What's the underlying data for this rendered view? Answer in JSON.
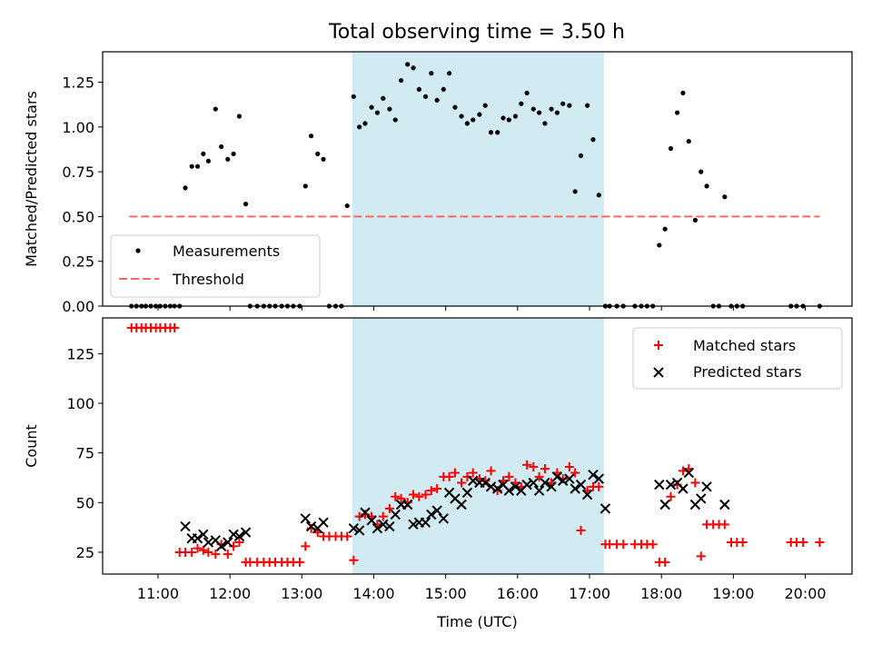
{
  "title": "Total observing time = 3.50 h",
  "colors": {
    "shade": "#add8e6",
    "measurement": "#000000",
    "threshold": "#ff6666",
    "matched": "#ff0000",
    "predicted": "#000000"
  },
  "chart_data": [
    {
      "type": "scatter",
      "panel": "top",
      "title": "Total observing time = 3.50 h",
      "xlabel": "",
      "ylabel": "Matched/Predicted stars",
      "xlim": [
        10.23,
        20.65
      ],
      "ylim": [
        0,
        1.42
      ],
      "yticks": [
        "0.00",
        "0.25",
        "0.50",
        "0.75",
        "1.00",
        "1.25"
      ],
      "ytick_values": [
        0,
        0.25,
        0.5,
        0.75,
        1.0,
        1.25
      ],
      "shaded_region": [
        13.7,
        17.2
      ],
      "legend": {
        "position": "lower-left",
        "entries": [
          "Measurements",
          "Threshold"
        ]
      },
      "threshold": {
        "name": "Threshold",
        "x": [
          10.6,
          20.2
        ],
        "y": 0.5
      },
      "series": [
        {
          "name": "Measurements",
          "x": [
            10.63,
            10.7,
            10.77,
            10.83,
            10.9,
            10.97,
            11.03,
            11.1,
            11.17,
            11.23,
            11.3,
            11.38,
            11.47,
            11.55,
            11.63,
            11.7,
            11.8,
            11.88,
            11.97,
            12.05,
            12.13,
            12.22,
            12.28,
            12.38,
            12.47,
            12.55,
            12.63,
            12.72,
            12.8,
            12.88,
            12.97,
            13.05,
            13.13,
            13.22,
            13.3,
            13.38,
            13.47,
            13.55,
            13.63,
            13.72,
            13.8,
            13.88,
            13.97,
            14.05,
            14.13,
            14.22,
            14.3,
            14.38,
            14.47,
            14.55,
            14.63,
            14.72,
            14.8,
            14.88,
            14.97,
            15.05,
            15.13,
            15.22,
            15.3,
            15.38,
            15.47,
            15.55,
            15.63,
            15.72,
            15.8,
            15.88,
            15.97,
            16.05,
            16.13,
            16.22,
            16.3,
            16.38,
            16.47,
            16.55,
            16.63,
            16.72,
            16.8,
            16.88,
            16.97,
            17.05,
            17.13,
            17.22,
            17.28,
            17.38,
            17.47,
            17.63,
            17.72,
            17.8,
            17.88,
            17.97,
            18.05,
            18.13,
            18.22,
            18.3,
            18.38,
            18.47,
            18.55,
            18.63,
            18.72,
            18.8,
            18.88,
            18.97,
            19.05,
            19.13,
            19.8,
            19.88,
            19.97,
            20.2
          ],
          "y": [
            0,
            0,
            0,
            0,
            0,
            0,
            0,
            0,
            0,
            0,
            0,
            0.66,
            0.78,
            0.78,
            0.85,
            0.81,
            1.1,
            0.89,
            0.82,
            0.85,
            1.06,
            0.57,
            0,
            0,
            0,
            0,
            0,
            0,
            0,
            0,
            0,
            0.67,
            0.95,
            0.85,
            0.82,
            0,
            0,
            0,
            0.56,
            1.17,
            1.0,
            1.02,
            1.11,
            1.08,
            1.16,
            1.1,
            1.04,
            1.26,
            1.35,
            1.33,
            1.21,
            1.17,
            1.3,
            1.15,
            1.21,
            1.3,
            1.11,
            1.06,
            1.02,
            1.04,
            1.07,
            1.12,
            0.97,
            0.97,
            1.05,
            1.04,
            1.06,
            1.13,
            1.19,
            1.1,
            1.08,
            1.02,
            1.1,
            1.08,
            1.13,
            1.12,
            0.64,
            0.84,
            1.12,
            0.93,
            0.62,
            0,
            0,
            0,
            0,
            0,
            0,
            0,
            0,
            0.34,
            0.43,
            0.88,
            1.08,
            1.19,
            0.92,
            0.48,
            0.75,
            0.67,
            0,
            0,
            0.61,
            0,
            0,
            0,
            0,
            0,
            0,
            0
          ]
        }
      ]
    },
    {
      "type": "scatter",
      "panel": "bottom",
      "xlabel": "Time (UTC)",
      "ylabel": "Count",
      "xlim": [
        10.23,
        20.65
      ],
      "ylim": [
        14,
        143
      ],
      "xticks": [
        "11:00",
        "12:00",
        "13:00",
        "14:00",
        "15:00",
        "16:00",
        "17:00",
        "18:00",
        "19:00",
        "20:00"
      ],
      "xtick_values": [
        11,
        12,
        13,
        14,
        15,
        16,
        17,
        18,
        19,
        20
      ],
      "yticks": [
        "25",
        "50",
        "75",
        "100",
        "125"
      ],
      "ytick_values": [
        25,
        50,
        75,
        100,
        125
      ],
      "shaded_region": [
        13.7,
        17.2
      ],
      "legend": {
        "position": "upper-right",
        "entries": [
          "Matched stars",
          "Predicted stars"
        ]
      },
      "series": [
        {
          "name": "Matched stars",
          "marker": "plus",
          "x": [
            10.63,
            10.7,
            10.77,
            10.83,
            10.9,
            10.97,
            11.03,
            11.1,
            11.17,
            11.23,
            11.3,
            11.38,
            11.47,
            11.55,
            11.63,
            11.7,
            11.8,
            11.88,
            11.97,
            12.05,
            12.13,
            12.22,
            12.28,
            12.38,
            12.47,
            12.55,
            12.63,
            12.72,
            12.8,
            12.88,
            12.97,
            13.05,
            13.13,
            13.22,
            13.3,
            13.38,
            13.47,
            13.55,
            13.63,
            13.72,
            13.8,
            13.88,
            13.97,
            14.05,
            14.13,
            14.22,
            14.3,
            14.38,
            14.47,
            14.55,
            14.63,
            14.72,
            14.8,
            14.88,
            14.97,
            15.05,
            15.13,
            15.22,
            15.3,
            15.38,
            15.47,
            15.55,
            15.63,
            15.72,
            15.8,
            15.88,
            15.97,
            16.05,
            16.13,
            16.22,
            16.3,
            16.38,
            16.47,
            16.55,
            16.63,
            16.72,
            16.8,
            16.88,
            16.97,
            17.05,
            17.13,
            17.22,
            17.28,
            17.38,
            17.47,
            17.63,
            17.72,
            17.8,
            17.88,
            17.97,
            18.05,
            18.13,
            18.22,
            18.3,
            18.38,
            18.47,
            18.55,
            18.63,
            18.72,
            18.8,
            18.88,
            18.97,
            19.05,
            19.13,
            19.8,
            19.88,
            19.97,
            20.2
          ],
          "y": [
            138,
            138,
            138,
            138,
            138,
            138,
            138,
            138,
            138,
            138,
            25,
            25,
            25,
            27,
            26,
            25,
            24,
            29,
            24,
            28,
            30,
            20,
            20,
            20,
            20,
            20,
            20,
            20,
            20,
            20,
            20,
            28,
            37,
            35,
            33,
            33,
            33,
            33,
            33,
            21,
            43,
            44,
            43,
            39,
            43,
            47,
            53,
            52,
            50,
            54,
            53,
            54,
            56,
            57,
            63,
            63,
            65,
            60,
            63,
            65,
            62,
            61,
            66,
            56,
            61,
            63,
            60,
            58,
            69,
            68,
            63,
            67,
            60,
            65,
            62,
            68,
            65,
            36,
            56,
            58,
            58,
            29,
            29,
            29,
            29,
            29,
            29,
            29,
            29,
            20,
            20,
            53,
            59,
            66,
            67,
            60,
            23,
            39,
            39,
            39,
            39,
            30,
            30,
            30,
            30,
            30,
            30,
            30
          ]
        },
        {
          "name": "Predicted stars",
          "marker": "x",
          "x": [
            11.38,
            11.47,
            11.55,
            11.63,
            11.7,
            11.8,
            11.88,
            11.97,
            12.05,
            12.13,
            12.22,
            13.05,
            13.13,
            13.22,
            13.3,
            13.72,
            13.8,
            13.88,
            13.97,
            14.05,
            14.13,
            14.22,
            14.3,
            14.38,
            14.47,
            14.55,
            14.63,
            14.72,
            14.8,
            14.88,
            14.97,
            15.05,
            15.13,
            15.22,
            15.3,
            15.38,
            15.47,
            15.55,
            15.63,
            15.72,
            15.8,
            15.88,
            15.97,
            16.05,
            16.13,
            16.22,
            16.3,
            16.38,
            16.47,
            16.55,
            16.63,
            16.72,
            16.8,
            16.88,
            16.97,
            17.05,
            17.13,
            17.22,
            17.97,
            18.05,
            18.13,
            18.22,
            18.3,
            18.38,
            18.47,
            18.55,
            18.63,
            18.88
          ],
          "y": [
            38,
            32,
            32,
            34,
            30,
            31,
            28,
            30,
            34,
            33,
            35,
            42,
            38,
            37,
            40,
            37,
            36,
            45,
            41,
            37,
            39,
            38,
            44,
            49,
            49,
            39,
            40,
            40,
            44,
            46,
            42,
            55,
            52,
            49,
            55,
            61,
            60,
            60,
            58,
            57,
            59,
            56,
            58,
            56,
            59,
            60,
            56,
            60,
            58,
            63,
            61,
            62,
            57,
            59,
            54,
            64,
            62,
            47,
            59,
            49,
            59,
            60,
            57,
            65,
            49,
            52,
            58,
            49
          ]
        }
      ]
    }
  ]
}
